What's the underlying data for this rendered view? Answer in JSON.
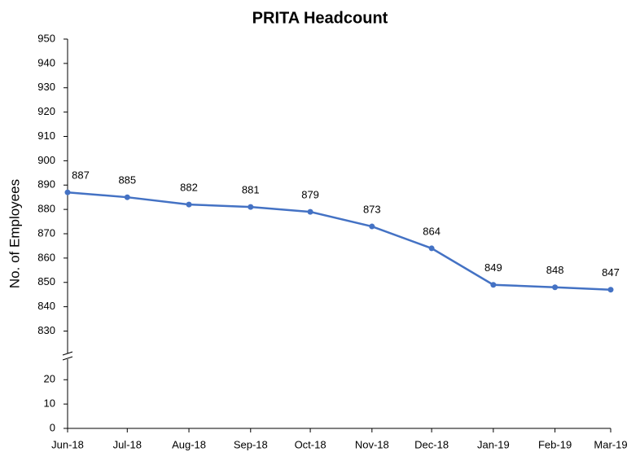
{
  "chart_data": {
    "type": "line",
    "title": "PRITA Headcount",
    "y_label": "No. of Employees",
    "x": [
      "Jun-18",
      "Jul-18",
      "Aug-18",
      "Sep-18",
      "Oct-18",
      "Nov-18",
      "Dec-18",
      "Jan-19",
      "Feb-19",
      "Mar-19"
    ],
    "series": [
      {
        "name": "Headcount",
        "color": "#4472c4",
        "values": [
          887,
          885,
          882,
          881,
          879,
          873,
          864,
          849,
          848,
          847
        ]
      }
    ],
    "ylim": [
      0,
      950
    ],
    "y_break": [
      30,
      820
    ],
    "yticks": [
      0,
      10,
      20,
      830,
      840,
      850,
      860,
      870,
      880,
      890,
      900,
      910,
      920,
      930,
      940,
      950
    ]
  }
}
